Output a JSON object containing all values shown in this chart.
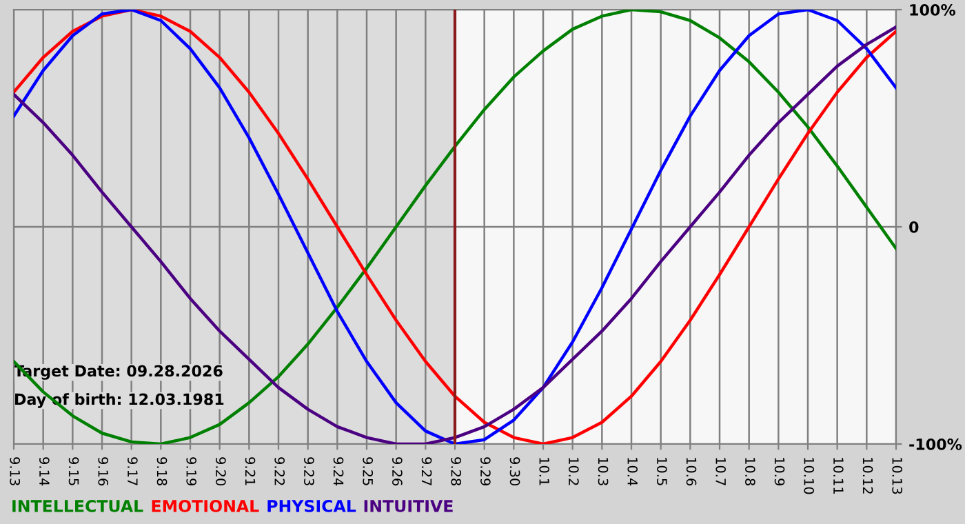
{
  "chart_data": {
    "type": "line",
    "categories": [
      "9.13",
      "9.14",
      "9.15",
      "9.16",
      "9.17",
      "9.18",
      "9.19",
      "9.20",
      "9.21",
      "9.22",
      "9.23",
      "9.24",
      "9.25",
      "9.26",
      "9.27",
      "9.28",
      "9.29",
      "9.30",
      "10.1",
      "10.2",
      "10.3",
      "10.4",
      "10.5",
      "10.6",
      "10.7",
      "10.8",
      "10.9",
      "10.10",
      "10.11",
      "10.12",
      "10.13"
    ],
    "series": [
      {
        "name": "INTELLECTUAL",
        "color": "#008000",
        "values": [
          -62,
          -76,
          -87,
          -95,
          -99,
          -100,
          -97,
          -91,
          -81,
          -69,
          -54,
          -37,
          -19,
          0,
          19,
          37,
          54,
          69,
          81,
          91,
          97,
          100,
          99,
          95,
          87,
          76,
          62,
          46,
          28,
          9,
          -10
        ]
      },
      {
        "name": "EMOTIONAL",
        "color": "#ff0000",
        "values": [
          62,
          78,
          90,
          97,
          100,
          97,
          90,
          78,
          62,
          43,
          22,
          0,
          -22,
          -43,
          -62,
          -78,
          -90,
          -97,
          -100,
          -97,
          -90,
          -78,
          -62,
          -43,
          -22,
          0,
          22,
          43,
          62,
          78,
          90
        ]
      },
      {
        "name": "PHYSICAL",
        "color": "#0000ff",
        "values": [
          51,
          72,
          88,
          98,
          100,
          95,
          82,
          64,
          41,
          15,
          -12,
          -39,
          -62,
          -81,
          -94,
          -100,
          -98,
          -89,
          -74,
          -53,
          -28,
          -1,
          26,
          51,
          72,
          88,
          98,
          100,
          95,
          82,
          64
        ]
      },
      {
        "name": "INTUITIVE",
        "color": "#4b0082",
        "values": [
          61,
          48,
          33,
          16,
          0,
          -16,
          -33,
          -48,
          -61,
          -74,
          -84,
          -92,
          -97,
          -100,
          -100,
          -97,
          -92,
          -84,
          -74,
          -61,
          -48,
          -33,
          -16,
          0,
          16,
          33,
          48,
          61,
          74,
          84,
          92
        ]
      }
    ],
    "ylim": [
      -100,
      100
    ],
    "yticks": [
      {
        "value": 100,
        "label": "100%"
      },
      0,
      {
        "value": -100,
        "label": "-100%"
      }
    ],
    "grid": true,
    "legend": "bottom",
    "ref_lines": [
      {
        "axis": "x",
        "value": "9.28",
        "color": "#8b1a1a"
      }
    ],
    "bands": [
      {
        "axis": "x",
        "from": "9.13",
        "to": "9.28",
        "color": "#dcdcdc"
      }
    ],
    "annotations": [
      "Target Date: 09.28.2026",
      "Day of birth: 12.03.1981"
    ]
  }
}
